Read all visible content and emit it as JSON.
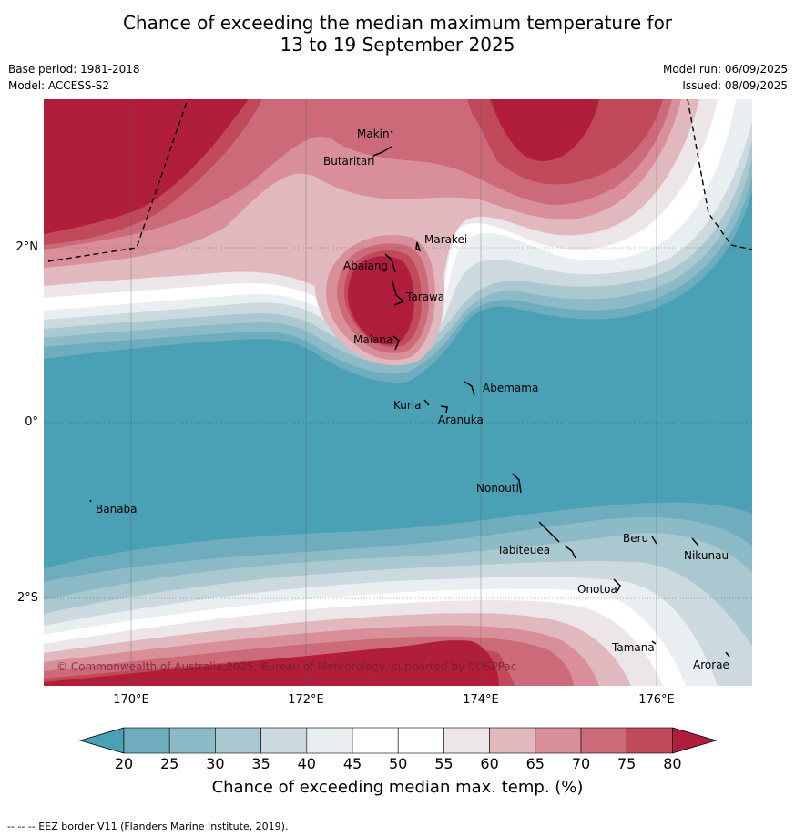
{
  "title_line1": "Chance of exceeding the median maximum temperature for",
  "title_line2": "13 to 19 September 2025",
  "base_period": "Base period: 1981-2018",
  "model": "Model: ACCESS-S2",
  "model_run": "Model run: 06/09/2025",
  "issued": "Issued: 08/09/2025",
  "x_ticks": [
    "170°E",
    "172°E",
    "174°E",
    "176°E"
  ],
  "y_ticks": [
    "2°N",
    "0°",
    "2°S"
  ],
  "places": {
    "makin": "Makin",
    "butaritari": "Butaritari",
    "marakei": "Marakei",
    "abaiang": "Abaiang",
    "tarawa": "Tarawa",
    "maiana": "Maiana",
    "abemama": "Abemama",
    "kuria": "Kuria",
    "aranuka": "Aranuka",
    "nonouti": "Nonouti",
    "banaba": "Banaba",
    "beru": "Beru",
    "nikunau": "Nikunau",
    "tabiteuea": "Tabiteuea",
    "onotoa": "Onotoa",
    "tamana": "Tamana",
    "arorae": "Arorae"
  },
  "copyright": "© Commonwealth of Australia 2025, Bureau of Meteorology, supported by COSPPac",
  "colorbar": {
    "ticks": [
      "20",
      "25",
      "30",
      "35",
      "40",
      "45",
      "50",
      "55",
      "60",
      "65",
      "70",
      "75",
      "80"
    ],
    "colors": [
      "#4aa0b5",
      "#6eadbe",
      "#8cbac7",
      "#a9c8cf",
      "#ccdadf",
      "#e9eef1",
      "#ffffff",
      "#ffffff",
      "#ece6e8",
      "#e2b8bf",
      "#d98f9a",
      "#cd6a79",
      "#c14a5a",
      "#b01e3b"
    ],
    "label": "Chance of exceeding median max. temp. (%)"
  },
  "footer": "--  --  -- EEZ border V11 (Flanders Marine Institute, 2019)."
}
